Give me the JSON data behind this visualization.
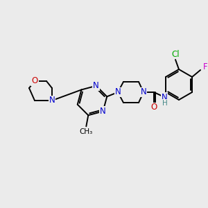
{
  "background_color": "#ebebeb",
  "atom_colors": {
    "N": "#0000cc",
    "O": "#cc0000",
    "F": "#cc00cc",
    "Cl": "#00aa00",
    "H": "#448888"
  },
  "bond_color": "#000000",
  "figsize": [
    3.0,
    3.0
  ],
  "dpi": 100
}
